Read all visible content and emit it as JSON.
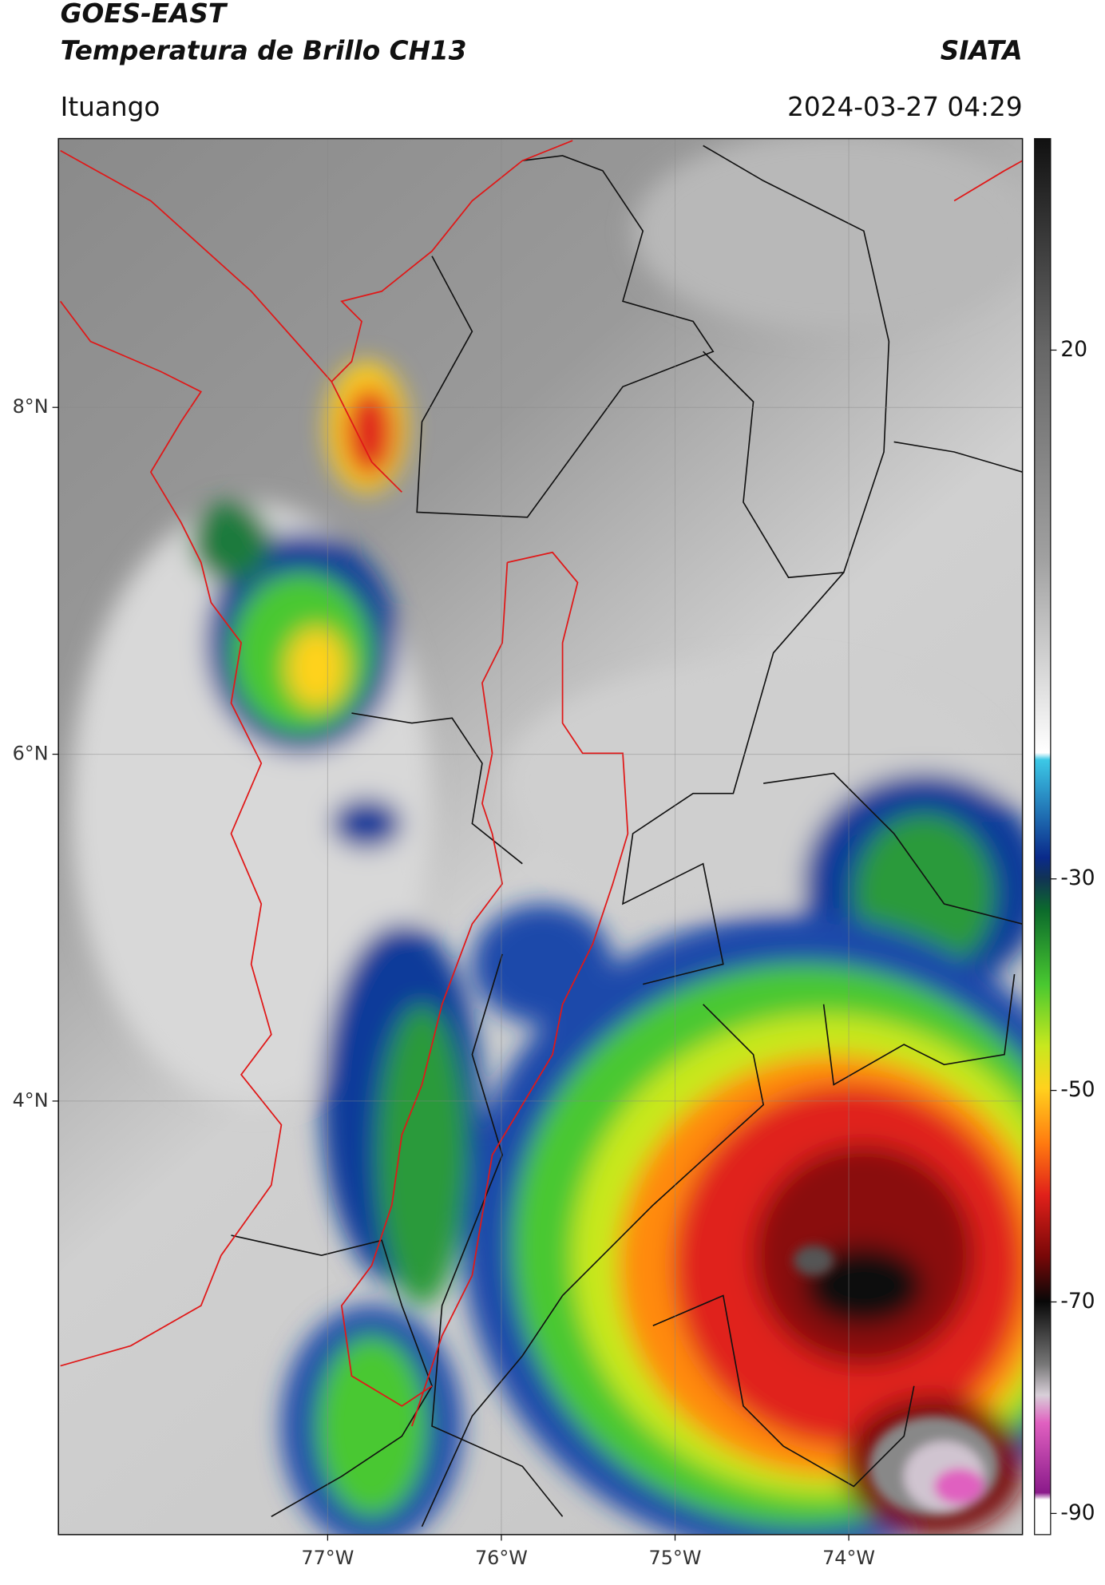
{
  "header": {
    "title": "GOES-EAST",
    "subtitle": "Temperatura de Brillo CH13",
    "source": "SIATA",
    "location": "Ituango",
    "datetime": "2024-03-27 04:29"
  },
  "chart_data": {
    "type": "map",
    "xlim": [
      -78.55,
      -73.0
    ],
    "ylim": [
      1.5,
      9.55
    ],
    "xticks": [
      {
        "value": -77,
        "label": "77°W"
      },
      {
        "value": -76,
        "label": "76°W"
      },
      {
        "value": -75,
        "label": "75°W"
      },
      {
        "value": -74,
        "label": "74°W"
      }
    ],
    "yticks": [
      {
        "value": 4,
        "label": "4°N"
      },
      {
        "value": 6,
        "label": "6°N"
      },
      {
        "value": 8,
        "label": "8°N"
      }
    ],
    "colorbar": {
      "lim": [
        -92,
        40
      ],
      "ticks": [
        20,
        -30,
        -50,
        -70,
        -90
      ]
    },
    "grid": true
  }
}
